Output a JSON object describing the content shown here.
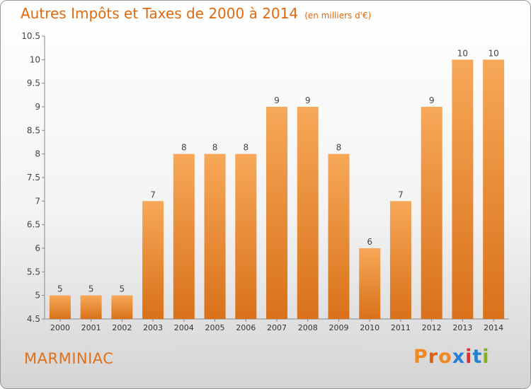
{
  "header": {
    "title": "Autres Impôts et Taxes de 2000 à 2014",
    "unit": "(en milliers d'€)"
  },
  "footer": {
    "commune": "MARMINIAC",
    "brand": "Proxiti"
  },
  "colors": {
    "accent": "#e06a10",
    "bar_light": "#f6a858",
    "bar_dark": "#d9711a",
    "brand_letters": [
      "#f08a20",
      "#e06010",
      "#f08a20",
      "#2a7fd0",
      "#e03030",
      "#2a7fd0",
      "#80b020"
    ]
  },
  "chart_data": {
    "type": "bar",
    "categories": [
      "2000",
      "2001",
      "2002",
      "2003",
      "2004",
      "2005",
      "2006",
      "2007",
      "2008",
      "2009",
      "2010",
      "2011",
      "2012",
      "2013",
      "2014"
    ],
    "values": [
      5,
      5,
      5,
      7,
      8,
      8,
      8,
      9,
      9,
      8,
      6,
      7,
      9,
      10,
      10
    ],
    "data_labels": [
      "5",
      "5",
      "5",
      "7",
      "8",
      "8",
      "8",
      "9",
      "9",
      "8",
      "6",
      "7",
      "9",
      "10",
      "10"
    ],
    "title": "Autres Impôts et Taxes de 2000 à 2014",
    "xlabel": "",
    "ylabel": "",
    "ylim": [
      4.5,
      10.5
    ],
    "yticks": [
      4.5,
      5,
      5.5,
      6,
      6.5,
      7,
      7.5,
      8,
      8.5,
      9,
      9.5,
      10,
      10.5
    ],
    "ytick_labels": [
      "4.5",
      "5",
      "5.5",
      "6",
      "6.5",
      "7",
      "7.5",
      "8",
      "8.5",
      "9",
      "9.5",
      "10",
      "10.5"
    ],
    "grid": false,
    "legend": "none"
  }
}
